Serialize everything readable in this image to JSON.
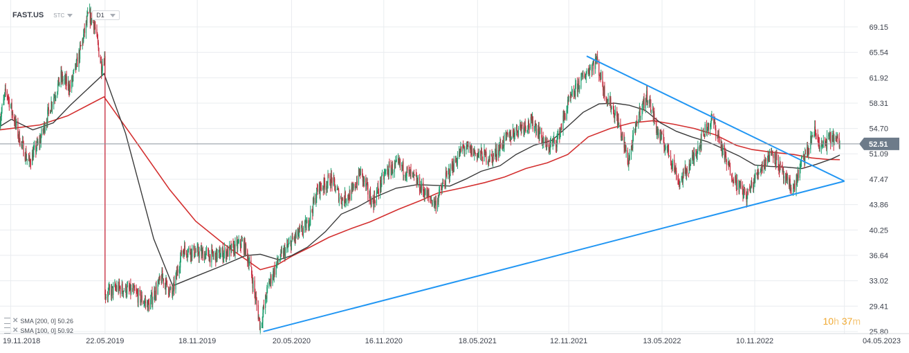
{
  "header": {
    "symbol": "FAST.US",
    "instrument_type": "STC",
    "interval": "D1"
  },
  "indicators": [
    {
      "label": "SMA [200, 0] 50.26",
      "color": "#d32f2f"
    },
    {
      "label": "SMA [100, 0] 50.92",
      "color": "#3a3a3a"
    }
  ],
  "timer": {
    "hours": "10",
    "h_unit": "h",
    "minutes": "37",
    "m_unit": "m"
  },
  "last_price": {
    "value": 52.51,
    "label": "52.51",
    "color": "#6d7b8a"
  },
  "colors": {
    "up": "#1f9e6e",
    "down": "#c6283a",
    "trend": "#2196f3",
    "grid": "#e9ecef",
    "axis_text": "#3a3f4a"
  },
  "chart_data": {
    "type": "candlestick",
    "x_range": [
      "2018-10-29",
      "2023-04-25"
    ],
    "ylim": [
      25.5,
      72.0
    ],
    "y_ticks": [
      "69.15",
      "65.54",
      "61.92",
      "58.31",
      "54.70",
      "51.09",
      "47.47",
      "43.86",
      "40.25",
      "36.64",
      "33.02",
      "29.41",
      "25.80"
    ],
    "x_ticks": [
      {
        "date": "2018-11-19",
        "label": "19.11.2018"
      },
      {
        "date": "2019-05-22",
        "label": "22.05.2019"
      },
      {
        "date": "2019-11-18",
        "label": "18.11.2019"
      },
      {
        "date": "2020-05-20",
        "label": "20.05.2020"
      },
      {
        "date": "2020-11-16",
        "label": "16.11.2020"
      },
      {
        "date": "2021-05-18",
        "label": "18.05.2021"
      },
      {
        "date": "2021-11-12",
        "label": "12.11.2021"
      },
      {
        "date": "2022-05-13",
        "label": "13.05.2022"
      },
      {
        "date": "2022-11-10",
        "label": "10.11.2022"
      },
      {
        "date": "2023-05-04",
        "label": "04.05.2023"
      }
    ],
    "price_path": [
      [
        "2018-10-29",
        56.0
      ],
      [
        "2018-11-10",
        60.2
      ],
      [
        "2018-12-05",
        53.5
      ],
      [
        "2018-12-24",
        49.8
      ],
      [
        "2019-01-15",
        53.0
      ],
      [
        "2019-02-05",
        58.0
      ],
      [
        "2019-02-25",
        62.0
      ],
      [
        "2019-03-15",
        60.5
      ],
      [
        "2019-04-01",
        65.0
      ],
      [
        "2019-04-20",
        71.0
      ],
      [
        "2019-05-01",
        69.5
      ],
      [
        "2019-05-15",
        63.5
      ],
      [
        "2019-05-21",
        65.0
      ],
      [
        "2019-05-22",
        31.0
      ],
      [
        "2019-06-15",
        32.0
      ],
      [
        "2019-07-15",
        31.5
      ],
      [
        "2019-08-15",
        29.5
      ],
      [
        "2019-09-10",
        33.5
      ],
      [
        "2019-09-30",
        31.0
      ],
      [
        "2019-10-20",
        37.5
      ],
      [
        "2019-11-20",
        37.0
      ],
      [
        "2019-12-20",
        36.5
      ],
      [
        "2020-01-20",
        37.2
      ],
      [
        "2020-02-15",
        38.5
      ],
      [
        "2020-02-28",
        35.5
      ],
      [
        "2020-03-20",
        26.5
      ],
      [
        "2020-04-05",
        32.5
      ],
      [
        "2020-04-25",
        36.0
      ],
      [
        "2020-05-25",
        39.0
      ],
      [
        "2020-06-20",
        41.0
      ],
      [
        "2020-07-10",
        46.0
      ],
      [
        "2020-08-05",
        47.5
      ],
      [
        "2020-08-25",
        44.5
      ],
      [
        "2020-09-15",
        45.5
      ],
      [
        "2020-10-01",
        48.5
      ],
      [
        "2020-10-25",
        44.0
      ],
      [
        "2020-11-20",
        48.5
      ],
      [
        "2020-12-15",
        49.5
      ],
      [
        "2021-01-15",
        47.5
      ],
      [
        "2021-02-10",
        45.0
      ],
      [
        "2021-02-25",
        44.0
      ],
      [
        "2021-03-20",
        48.0
      ],
      [
        "2021-04-20",
        52.0
      ],
      [
        "2021-05-20",
        51.0
      ],
      [
        "2021-06-15",
        50.5
      ],
      [
        "2021-07-10",
        53.0
      ],
      [
        "2021-08-10",
        55.0
      ],
      [
        "2021-09-05",
        55.5
      ],
      [
        "2021-09-30",
        52.0
      ],
      [
        "2021-10-20",
        53.0
      ],
      [
        "2021-11-10",
        58.0
      ],
      [
        "2021-12-01",
        61.0
      ],
      [
        "2021-12-20",
        63.0
      ],
      [
        "2022-01-05",
        64.5
      ],
      [
        "2022-01-20",
        60.0
      ],
      [
        "2022-02-15",
        56.0
      ],
      [
        "2022-03-08",
        50.0
      ],
      [
        "2022-03-30",
        57.0
      ],
      [
        "2022-04-15",
        59.5
      ],
      [
        "2022-05-05",
        54.0
      ],
      [
        "2022-05-25",
        51.5
      ],
      [
        "2022-06-16",
        47.0
      ],
      [
        "2022-07-10",
        50.0
      ],
      [
        "2022-08-05",
        54.5
      ],
      [
        "2022-08-20",
        56.0
      ],
      [
        "2022-09-15",
        50.0
      ],
      [
        "2022-10-05",
        47.0
      ],
      [
        "2022-10-25",
        45.0
      ],
      [
        "2022-11-20",
        49.0
      ],
      [
        "2022-12-15",
        51.5
      ],
      [
        "2023-01-10",
        47.0
      ],
      [
        "2023-01-25",
        46.0
      ],
      [
        "2023-02-10",
        50.0
      ],
      [
        "2023-02-22",
        51.5
      ],
      [
        "2023-03-05",
        54.5
      ],
      [
        "2023-03-20",
        52.0
      ],
      [
        "2023-04-10",
        53.5
      ],
      [
        "2023-04-25",
        52.51
      ]
    ],
    "sma_100": [
      [
        "2018-10-29",
        55.0
      ],
      [
        "2018-11-20",
        56.0
      ],
      [
        "2019-01-01",
        54.5
      ],
      [
        "2019-02-10",
        55.5
      ],
      [
        "2019-03-15",
        58.0
      ],
      [
        "2019-05-20",
        62.5
      ],
      [
        "2019-07-01",
        54.0
      ],
      [
        "2019-08-25",
        39.0
      ],
      [
        "2019-10-01",
        32.3
      ],
      [
        "2019-11-20",
        33.8
      ],
      [
        "2019-12-31",
        35.0
      ],
      [
        "2020-02-20",
        36.6
      ],
      [
        "2020-03-20",
        36.8
      ],
      [
        "2020-04-25",
        36.0
      ],
      [
        "2020-05-20",
        36.6
      ],
      [
        "2020-06-20",
        37.8
      ],
      [
        "2020-07-25",
        40.0
      ],
      [
        "2020-08-25",
        42.5
      ],
      [
        "2020-09-25",
        43.5
      ],
      [
        "2020-11-01",
        45.0
      ],
      [
        "2020-12-10",
        46.2
      ],
      [
        "2021-01-20",
        46.7
      ],
      [
        "2021-02-25",
        46.6
      ],
      [
        "2021-03-25",
        46.5
      ],
      [
        "2021-04-25",
        47.5
      ],
      [
        "2021-05-25",
        48.6
      ],
      [
        "2021-07-01",
        49.4
      ],
      [
        "2021-08-01",
        51.0
      ],
      [
        "2021-09-05",
        52.3
      ],
      [
        "2021-10-10",
        53.0
      ],
      [
        "2021-11-10",
        55.0
      ],
      [
        "2021-12-10",
        57.0
      ],
      [
        "2022-01-10",
        58.2
      ],
      [
        "2022-02-10",
        58.3
      ],
      [
        "2022-03-10",
        58.0
      ],
      [
        "2022-04-10",
        57.3
      ],
      [
        "2022-05-10",
        55.5
      ],
      [
        "2022-06-10",
        54.3
      ],
      [
        "2022-07-10",
        53.5
      ],
      [
        "2022-08-10",
        52.8
      ],
      [
        "2022-09-10",
        51.8
      ],
      [
        "2022-10-10",
        50.8
      ],
      [
        "2022-11-10",
        49.5
      ],
      [
        "2022-12-10",
        49.3
      ],
      [
        "2023-01-10",
        49.2
      ],
      [
        "2023-02-10",
        49.0
      ],
      [
        "2023-03-10",
        49.6
      ],
      [
        "2023-04-10",
        50.4
      ],
      [
        "2023-04-25",
        50.92
      ]
    ],
    "sma_200": [
      [
        "2018-10-29",
        54.5
      ],
      [
        "2018-12-01",
        54.8
      ],
      [
        "2019-01-15",
        55.2
      ],
      [
        "2019-03-10",
        56.5
      ],
      [
        "2019-05-20",
        59.2
      ],
      [
        "2019-07-10",
        54.0
      ],
      [
        "2019-09-25",
        46.0
      ],
      [
        "2019-11-15",
        41.5
      ],
      [
        "2020-01-10",
        38.2
      ],
      [
        "2020-03-20",
        34.6
      ],
      [
        "2020-04-20",
        35.2
      ],
      [
        "2020-05-20",
        36.5
      ],
      [
        "2020-06-25",
        37.8
      ],
      [
        "2020-08-01",
        39.2
      ],
      [
        "2020-09-15",
        40.5
      ],
      [
        "2020-10-20",
        41.4
      ],
      [
        "2020-12-15",
        43.2
      ],
      [
        "2021-01-25",
        44.4
      ],
      [
        "2021-03-01",
        45.5
      ],
      [
        "2021-04-15",
        46.2
      ],
      [
        "2021-06-01",
        47.0
      ],
      [
        "2021-07-10",
        47.8
      ],
      [
        "2021-08-20",
        49.0
      ],
      [
        "2021-10-01",
        49.8
      ],
      [
        "2021-11-10",
        51.0
      ],
      [
        "2021-12-20",
        53.5
      ],
      [
        "2022-02-01",
        54.7
      ],
      [
        "2022-03-15",
        55.5
      ],
      [
        "2022-04-25",
        55.8
      ],
      [
        "2022-06-05",
        55.3
      ],
      [
        "2022-07-15",
        54.7
      ],
      [
        "2022-08-25",
        53.8
      ],
      [
        "2022-10-05",
        52.3
      ],
      [
        "2022-11-05",
        51.7
      ],
      [
        "2022-12-15",
        51.3
      ],
      [
        "2023-01-25",
        51.0
      ],
      [
        "2023-03-01",
        50.5
      ],
      [
        "2023-04-01",
        50.3
      ],
      [
        "2023-04-25",
        50.26
      ]
    ],
    "trend_lines": [
      {
        "from": [
          "2020-03-26",
          25.8
        ],
        "to": [
          "2023-05-04",
          47.2
        ]
      },
      {
        "from": [
          "2021-12-17",
          65.0
        ],
        "to": [
          "2023-05-04",
          47.2
        ]
      }
    ]
  }
}
